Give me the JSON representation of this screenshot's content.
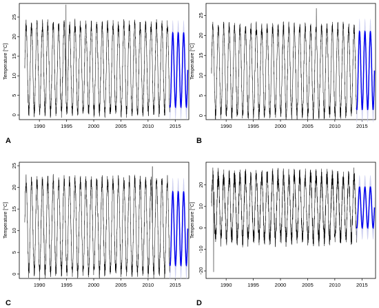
{
  "chart_data": [
    {
      "panel": "A",
      "type": "line",
      "ylabel": "Temperature [°C]",
      "xticks": [
        1990,
        1995,
        2000,
        2005,
        2010,
        2015
      ],
      "yticks": [
        0,
        5,
        10,
        15,
        20,
        25
      ],
      "xlim": [
        1986.3,
        2017.5
      ],
      "ylim": [
        -1.2,
        28.5
      ],
      "series": [
        {
          "role": "observed",
          "x_range": [
            1987.3,
            2014.0
          ],
          "seasonal_min": 0.8,
          "seasonal_max": 23.0,
          "notable_peak": {
            "x": 1994.9,
            "y": 28.2
          },
          "color": "#000000"
        },
        {
          "role": "forecast",
          "x_range": [
            2014.0,
            2017.3
          ],
          "seasonal_min": 2.0,
          "seasonal_max": 21.0,
          "color": "#0000ee",
          "band_color": "#c5c8ee"
        }
      ],
      "grid": false
    },
    {
      "panel": "B",
      "type": "line",
      "ylabel": "Temperature [°C]",
      "xticks": [
        1990,
        1995,
        2000,
        2005,
        2010,
        2015
      ],
      "yticks": [
        0,
        5,
        10,
        15,
        20,
        25
      ],
      "xlim": [
        1986.3,
        2017.5
      ],
      "ylim": [
        -1.0,
        28.0
      ],
      "series": [
        {
          "role": "observed",
          "x_range": [
            1987.3,
            2014.0
          ],
          "seasonal_min": 0.3,
          "seasonal_max": 22.0,
          "notable_peak": {
            "x": 2006.6,
            "y": 26.8
          },
          "color": "#000000"
        },
        {
          "role": "forecast",
          "x_range": [
            2014.0,
            2017.3
          ],
          "seasonal_min": 1.5,
          "seasonal_max": 21.0,
          "color": "#0000ee",
          "band_color": "#c5c8ee"
        }
      ],
      "grid": false
    },
    {
      "panel": "C",
      "type": "line",
      "ylabel": "Temperature [°C]",
      "xticks": [
        1990,
        1995,
        2000,
        2005,
        2010,
        2015
      ],
      "yticks": [
        0,
        5,
        10,
        15,
        20,
        25
      ],
      "xlim": [
        1986.3,
        2017.5
      ],
      "ylim": [
        -1.0,
        25.8
      ],
      "series": [
        {
          "role": "observed",
          "x_range": [
            1987.3,
            2014.0
          ],
          "seasonal_min": 0.5,
          "seasonal_max": 21.5,
          "notable_peak": {
            "x": 2010.8,
            "y": 24.8
          },
          "color": "#000000"
        },
        {
          "role": "forecast",
          "x_range": [
            2014.0,
            2017.3
          ],
          "seasonal_min": 2.0,
          "seasonal_max": 19.0,
          "color": "#0000ee",
          "band_color": "#c5c8ee"
        }
      ],
      "grid": false
    },
    {
      "panel": "D",
      "type": "line",
      "ylabel": "Temperature [°C]",
      "xticks": [
        1990,
        1995,
        2000,
        2005,
        2010,
        2015
      ],
      "yticks": [
        -20,
        -10,
        0,
        10,
        20
      ],
      "xlim": [
        1986.3,
        2017.5
      ],
      "ylim": [
        -23.5,
        30.5
      ],
      "series": [
        {
          "role": "observed",
          "x_range": [
            1987.3,
            2014.0
          ],
          "seasonal_min": -5.0,
          "seasonal_max": 24.0,
          "notable_peak": {
            "x": 1987.7,
            "y": -20.5
          },
          "color": "#000000"
        },
        {
          "role": "forecast",
          "x_range": [
            2014.0,
            2017.3
          ],
          "seasonal_min": 0.0,
          "seasonal_max": 19.0,
          "color": "#0000ee",
          "band_color": "#c5c8ee"
        }
      ],
      "grid": false
    }
  ]
}
